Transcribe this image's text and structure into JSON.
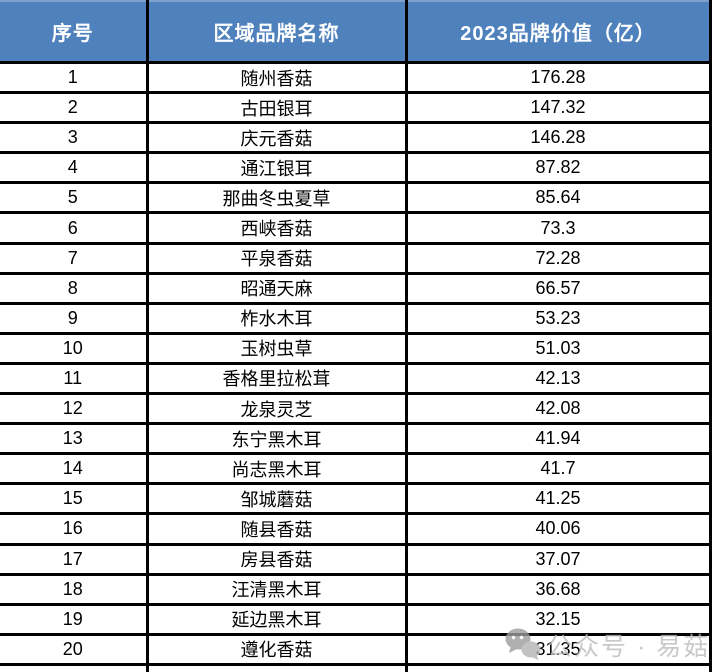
{
  "chart_data": {
    "type": "table",
    "title": "",
    "columns": [
      "序号",
      "区域品牌名称",
      "2023品牌价值（亿）"
    ],
    "rows": [
      [
        1,
        "随州香菇",
        176.28
      ],
      [
        2,
        "古田银耳",
        147.32
      ],
      [
        3,
        "庆元香菇",
        146.28
      ],
      [
        4,
        "通江银耳",
        87.82
      ],
      [
        5,
        "那曲冬虫夏草",
        85.64
      ],
      [
        6,
        "西峡香菇",
        73.3
      ],
      [
        7,
        "平泉香菇",
        72.28
      ],
      [
        8,
        "昭通天麻",
        66.57
      ],
      [
        9,
        "柞水木耳",
        53.23
      ],
      [
        10,
        "玉树虫草",
        51.03
      ],
      [
        11,
        "香格里拉松茸",
        42.13
      ],
      [
        12,
        "龙泉灵芝",
        42.08
      ],
      [
        13,
        "东宁黑木耳",
        41.94
      ],
      [
        14,
        "尚志黑木耳",
        41.7
      ],
      [
        15,
        "邹城蘑菇",
        41.25
      ],
      [
        16,
        "随县香菇",
        40.06
      ],
      [
        17,
        "房县香菇",
        37.07
      ],
      [
        18,
        "汪清黑木耳",
        36.68
      ],
      [
        19,
        "延边黑木耳",
        32.15
      ],
      [
        20,
        "遵化香菇",
        31.35
      ]
    ]
  },
  "table": {
    "headers": [
      "序号",
      "区域品牌名称",
      "2023品牌价值（亿）"
    ],
    "rows": [
      {
        "rank": "1",
        "name": "随州香菇",
        "value": "176.28"
      },
      {
        "rank": "2",
        "name": "古田银耳",
        "value": "147.32"
      },
      {
        "rank": "3",
        "name": "庆元香菇",
        "value": "146.28"
      },
      {
        "rank": "4",
        "name": "通江银耳",
        "value": "87.82"
      },
      {
        "rank": "5",
        "name": "那曲冬虫夏草",
        "value": "85.64"
      },
      {
        "rank": "6",
        "name": "西峡香菇",
        "value": "73.3"
      },
      {
        "rank": "7",
        "name": "平泉香菇",
        "value": "72.28"
      },
      {
        "rank": "8",
        "name": "昭通天麻",
        "value": "66.57"
      },
      {
        "rank": "9",
        "name": "柞水木耳",
        "value": "53.23"
      },
      {
        "rank": "10",
        "name": "玉树虫草",
        "value": "51.03"
      },
      {
        "rank": "11",
        "name": "香格里拉松茸",
        "value": "42.13"
      },
      {
        "rank": "12",
        "name": "龙泉灵芝",
        "value": "42.08"
      },
      {
        "rank": "13",
        "name": "东宁黑木耳",
        "value": "41.94"
      },
      {
        "rank": "14",
        "name": "尚志黑木耳",
        "value": "41.7"
      },
      {
        "rank": "15",
        "name": "邹城蘑菇",
        "value": "41.25"
      },
      {
        "rank": "16",
        "name": "随县香菇",
        "value": "40.06"
      },
      {
        "rank": "17",
        "name": "房县香菇",
        "value": "37.07"
      },
      {
        "rank": "18",
        "name": "汪清黑木耳",
        "value": "36.68"
      },
      {
        "rank": "19",
        "name": "延边黑木耳",
        "value": "32.15"
      },
      {
        "rank": "20",
        "name": "遵化香菇",
        "value": "31.35"
      }
    ]
  },
  "watermark": {
    "icon": "chat-bubbles-icon",
    "text": "公众号 · 易菇网"
  },
  "colors": {
    "header_bg": "#4f81bd",
    "header_text": "#ffffff",
    "border": "#000000",
    "row_bg": "#ffffff",
    "cell_text": "#000000",
    "watermark_text": "#bcbcbc"
  }
}
